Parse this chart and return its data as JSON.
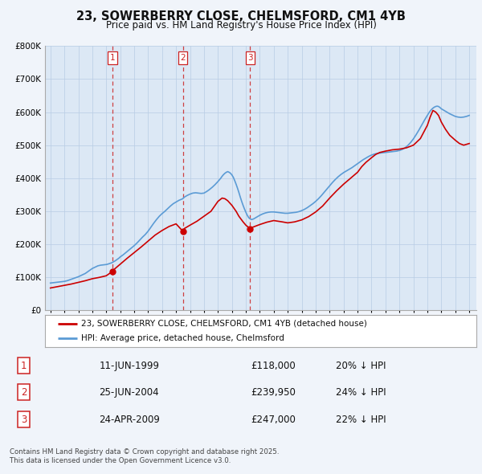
{
  "title": "23, SOWERBERRY CLOSE, CHELMSFORD, CM1 4YB",
  "subtitle": "Price paid vs. HM Land Registry's House Price Index (HPI)",
  "legend_entry1": "23, SOWERBERRY CLOSE, CHELMSFORD, CM1 4YB (detached house)",
  "legend_entry2": "HPI: Average price, detached house, Chelmsford",
  "footer1": "Contains HM Land Registry data © Crown copyright and database right 2025.",
  "footer2": "This data is licensed under the Open Government Licence v3.0.",
  "sale_labels": [
    "1",
    "2",
    "3"
  ],
  "sale_dates_label": [
    "11-JUN-1999",
    "25-JUN-2004",
    "24-APR-2009"
  ],
  "sale_prices_label": [
    "£118,000",
    "£239,950",
    "£247,000"
  ],
  "sale_hpi_label": [
    "20% ↓ HPI",
    "24% ↓ HPI",
    "22% ↓ HPI"
  ],
  "sale_years": [
    1999.44,
    2004.48,
    2009.31
  ],
  "sale_prices": [
    118000,
    239950,
    247000
  ],
  "background_color": "#f0f4fa",
  "plot_bg_color": "#dce8f5",
  "grid_color": "#b8cce4",
  "red_color": "#cc0000",
  "blue_color": "#5b9bd5",
  "dashed_red": "#cc2222",
  "ylim_max": 800000,
  "ylim_min": 0,
  "hpi_years": [
    1995.0,
    1995.1,
    1995.2,
    1995.3,
    1995.4,
    1995.5,
    1995.6,
    1995.7,
    1995.8,
    1995.9,
    1996.0,
    1996.1,
    1996.2,
    1996.3,
    1996.4,
    1996.5,
    1996.6,
    1996.7,
    1996.8,
    1996.9,
    1997.0,
    1997.1,
    1997.2,
    1997.3,
    1997.4,
    1997.5,
    1997.6,
    1997.7,
    1997.8,
    1997.9,
    1998.0,
    1998.1,
    1998.2,
    1998.3,
    1998.4,
    1998.5,
    1998.6,
    1998.7,
    1998.8,
    1998.9,
    1999.0,
    1999.1,
    1999.2,
    1999.3,
    1999.44,
    1999.5,
    1999.6,
    1999.7,
    1999.8,
    1999.9,
    2000.0,
    2000.2,
    2000.4,
    2000.6,
    2000.8,
    2001.0,
    2001.2,
    2001.4,
    2001.6,
    2001.8,
    2002.0,
    2002.2,
    2002.4,
    2002.6,
    2002.8,
    2003.0,
    2003.2,
    2003.4,
    2003.6,
    2003.8,
    2004.0,
    2004.2,
    2004.48,
    2004.6,
    2004.8,
    2005.0,
    2005.2,
    2005.4,
    2005.6,
    2005.8,
    2006.0,
    2006.2,
    2006.4,
    2006.6,
    2006.8,
    2007.0,
    2007.1,
    2007.2,
    2007.3,
    2007.4,
    2007.5,
    2007.6,
    2007.7,
    2007.8,
    2007.9,
    2008.0,
    2008.1,
    2008.2,
    2008.3,
    2008.4,
    2008.5,
    2008.6,
    2008.7,
    2008.8,
    2008.9,
    2009.0,
    2009.1,
    2009.2,
    2009.31,
    2009.4,
    2009.5,
    2009.6,
    2009.8,
    2010.0,
    2010.2,
    2010.4,
    2010.6,
    2010.8,
    2011.0,
    2011.2,
    2011.4,
    2011.6,
    2011.8,
    2012.0,
    2012.2,
    2012.4,
    2012.6,
    2012.8,
    2013.0,
    2013.2,
    2013.4,
    2013.6,
    2013.8,
    2014.0,
    2014.2,
    2014.4,
    2014.6,
    2014.8,
    2015.0,
    2015.2,
    2015.4,
    2015.6,
    2015.8,
    2016.0,
    2016.2,
    2016.4,
    2016.6,
    2016.8,
    2017.0,
    2017.2,
    2017.4,
    2017.6,
    2017.8,
    2018.0,
    2018.2,
    2018.4,
    2018.6,
    2018.8,
    2019.0,
    2019.2,
    2019.4,
    2019.6,
    2019.8,
    2020.0,
    2020.2,
    2020.4,
    2020.6,
    2020.8,
    2021.0,
    2021.2,
    2021.4,
    2021.6,
    2021.8,
    2022.0,
    2022.1,
    2022.2,
    2022.3,
    2022.4,
    2022.5,
    2022.6,
    2022.7,
    2022.8,
    2022.9,
    2023.0,
    2023.2,
    2023.4,
    2023.6,
    2023.8,
    2024.0,
    2024.2,
    2024.4,
    2024.6,
    2024.8,
    2025.0
  ],
  "hpi_values": [
    83000,
    83500,
    84000,
    84500,
    85000,
    85500,
    86000,
    86500,
    87000,
    87500,
    88000,
    89000,
    90000,
    91500,
    93000,
    94500,
    96000,
    97500,
    99000,
    100500,
    102000,
    104000,
    106000,
    108000,
    110000,
    112000,
    115000,
    118000,
    121000,
    124000,
    127000,
    129000,
    131000,
    133000,
    135000,
    136000,
    137000,
    137500,
    138000,
    138500,
    139000,
    140000,
    141500,
    143000,
    145000,
    147000,
    149000,
    152000,
    155000,
    158000,
    162000,
    168000,
    175000,
    182000,
    189000,
    196000,
    204000,
    213000,
    222000,
    230000,
    240000,
    252000,
    264000,
    275000,
    285000,
    293000,
    300000,
    308000,
    316000,
    323000,
    328000,
    333000,
    338000,
    343000,
    348000,
    352000,
    355000,
    356000,
    355000,
    354000,
    355000,
    360000,
    366000,
    373000,
    381000,
    390000,
    395000,
    400000,
    406000,
    411000,
    415000,
    418000,
    420000,
    418000,
    415000,
    410000,
    403000,
    393000,
    382000,
    370000,
    357000,
    343000,
    330000,
    318000,
    307000,
    297000,
    288000,
    281000,
    277000,
    275000,
    276000,
    278000,
    283000,
    288000,
    292000,
    295000,
    297000,
    298000,
    298000,
    297000,
    296000,
    295000,
    294000,
    294000,
    295000,
    296000,
    297000,
    299000,
    302000,
    306000,
    311000,
    317000,
    323000,
    330000,
    338000,
    347000,
    357000,
    367000,
    377000,
    387000,
    396000,
    404000,
    411000,
    417000,
    422000,
    427000,
    432000,
    438000,
    444000,
    450000,
    456000,
    461000,
    466000,
    470000,
    473000,
    475000,
    476000,
    477000,
    478000,
    479000,
    480000,
    481000,
    482000,
    484000,
    487000,
    492000,
    499000,
    508000,
    519000,
    532000,
    546000,
    561000,
    576000,
    590000,
    597000,
    603000,
    608000,
    612000,
    615000,
    617000,
    618000,
    617000,
    614000,
    610000,
    605000,
    600000,
    595000,
    591000,
    587000,
    585000,
    584000,
    585000,
    587000,
    590000
  ],
  "price_years": [
    1995.0,
    1995.5,
    1996.0,
    1996.5,
    1997.0,
    1997.5,
    1998.0,
    1998.5,
    1999.0,
    1999.44,
    1999.5,
    2000.0,
    2000.5,
    2001.0,
    2001.5,
    2002.0,
    2002.5,
    2003.0,
    2003.5,
    2004.0,
    2004.48,
    2004.6,
    2005.0,
    2005.5,
    2006.0,
    2006.5,
    2007.0,
    2007.3,
    2007.5,
    2007.7,
    2008.0,
    2008.3,
    2008.5,
    2008.8,
    2009.0,
    2009.31,
    2009.5,
    2010.0,
    2010.5,
    2011.0,
    2011.3,
    2011.6,
    2012.0,
    2012.5,
    2013.0,
    2013.5,
    2014.0,
    2014.5,
    2015.0,
    2015.5,
    2016.0,
    2016.5,
    2017.0,
    2017.3,
    2017.6,
    2018.0,
    2018.3,
    2018.6,
    2019.0,
    2019.5,
    2020.0,
    2020.5,
    2021.0,
    2021.5,
    2022.0,
    2022.2,
    2022.4,
    2022.6,
    2022.8,
    2023.0,
    2023.3,
    2023.6,
    2024.0,
    2024.3,
    2024.6,
    2025.0
  ],
  "price_values": [
    68000,
    72000,
    76000,
    80000,
    85000,
    90000,
    96000,
    100000,
    105000,
    118000,
    122000,
    140000,
    158000,
    175000,
    192000,
    210000,
    228000,
    242000,
    254000,
    262000,
    239950,
    248000,
    258000,
    270000,
    285000,
    300000,
    330000,
    340000,
    338000,
    332000,
    318000,
    300000,
    285000,
    268000,
    258000,
    247000,
    252000,
    260000,
    267000,
    272000,
    270000,
    268000,
    265000,
    268000,
    274000,
    284000,
    298000,
    316000,
    340000,
    362000,
    382000,
    400000,
    418000,
    435000,
    448000,
    462000,
    472000,
    478000,
    482000,
    486000,
    488000,
    492000,
    500000,
    520000,
    560000,
    585000,
    605000,
    600000,
    590000,
    570000,
    548000,
    530000,
    515000,
    505000,
    500000,
    505000
  ]
}
